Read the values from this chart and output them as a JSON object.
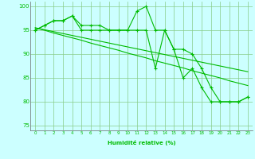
{
  "xlabel": "Humidité relative (%)",
  "x_values": [
    0,
    1,
    2,
    3,
    4,
    5,
    6,
    7,
    8,
    9,
    10,
    11,
    12,
    13,
    14,
    15,
    16,
    17,
    18,
    19,
    20,
    21,
    22,
    23
  ],
  "line1_y": [
    95,
    96,
    97,
    97,
    98,
    95,
    95,
    95,
    95,
    95,
    95,
    99,
    100,
    95,
    95,
    91,
    91,
    90,
    87,
    83,
    80,
    80,
    80,
    81
  ],
  "line2_y": [
    95,
    96,
    97,
    97,
    98,
    96,
    96,
    96,
    95,
    95,
    95,
    95,
    95,
    87,
    95,
    91,
    85,
    87,
    83,
    80,
    80,
    80,
    80,
    81
  ],
  "trend1_y": [
    95.5,
    95.1,
    94.7,
    94.3,
    93.9,
    93.5,
    93.1,
    92.7,
    92.3,
    91.9,
    91.5,
    91.1,
    90.7,
    90.3,
    89.9,
    89.5,
    89.1,
    88.7,
    88.3,
    87.9,
    87.5,
    87.1,
    86.7,
    86.3
  ],
  "trend2_y": [
    95.5,
    95.0,
    94.4,
    93.9,
    93.4,
    92.9,
    92.3,
    91.8,
    91.3,
    90.8,
    90.2,
    89.7,
    89.2,
    88.6,
    88.1,
    87.6,
    87.1,
    86.5,
    86.0,
    85.5,
    85.0,
    84.4,
    83.9,
    83.4
  ],
  "line_color": "#00bb00",
  "background_color": "#ccffff",
  "grid_color": "#88cc88",
  "ylim": [
    74,
    101
  ],
  "yticks": [
    75,
    80,
    85,
    90,
    95,
    100
  ],
  "xticks": [
    0,
    1,
    2,
    3,
    4,
    5,
    6,
    7,
    8,
    9,
    10,
    11,
    12,
    13,
    14,
    15,
    16,
    17,
    18,
    19,
    20,
    21,
    22,
    23
  ]
}
